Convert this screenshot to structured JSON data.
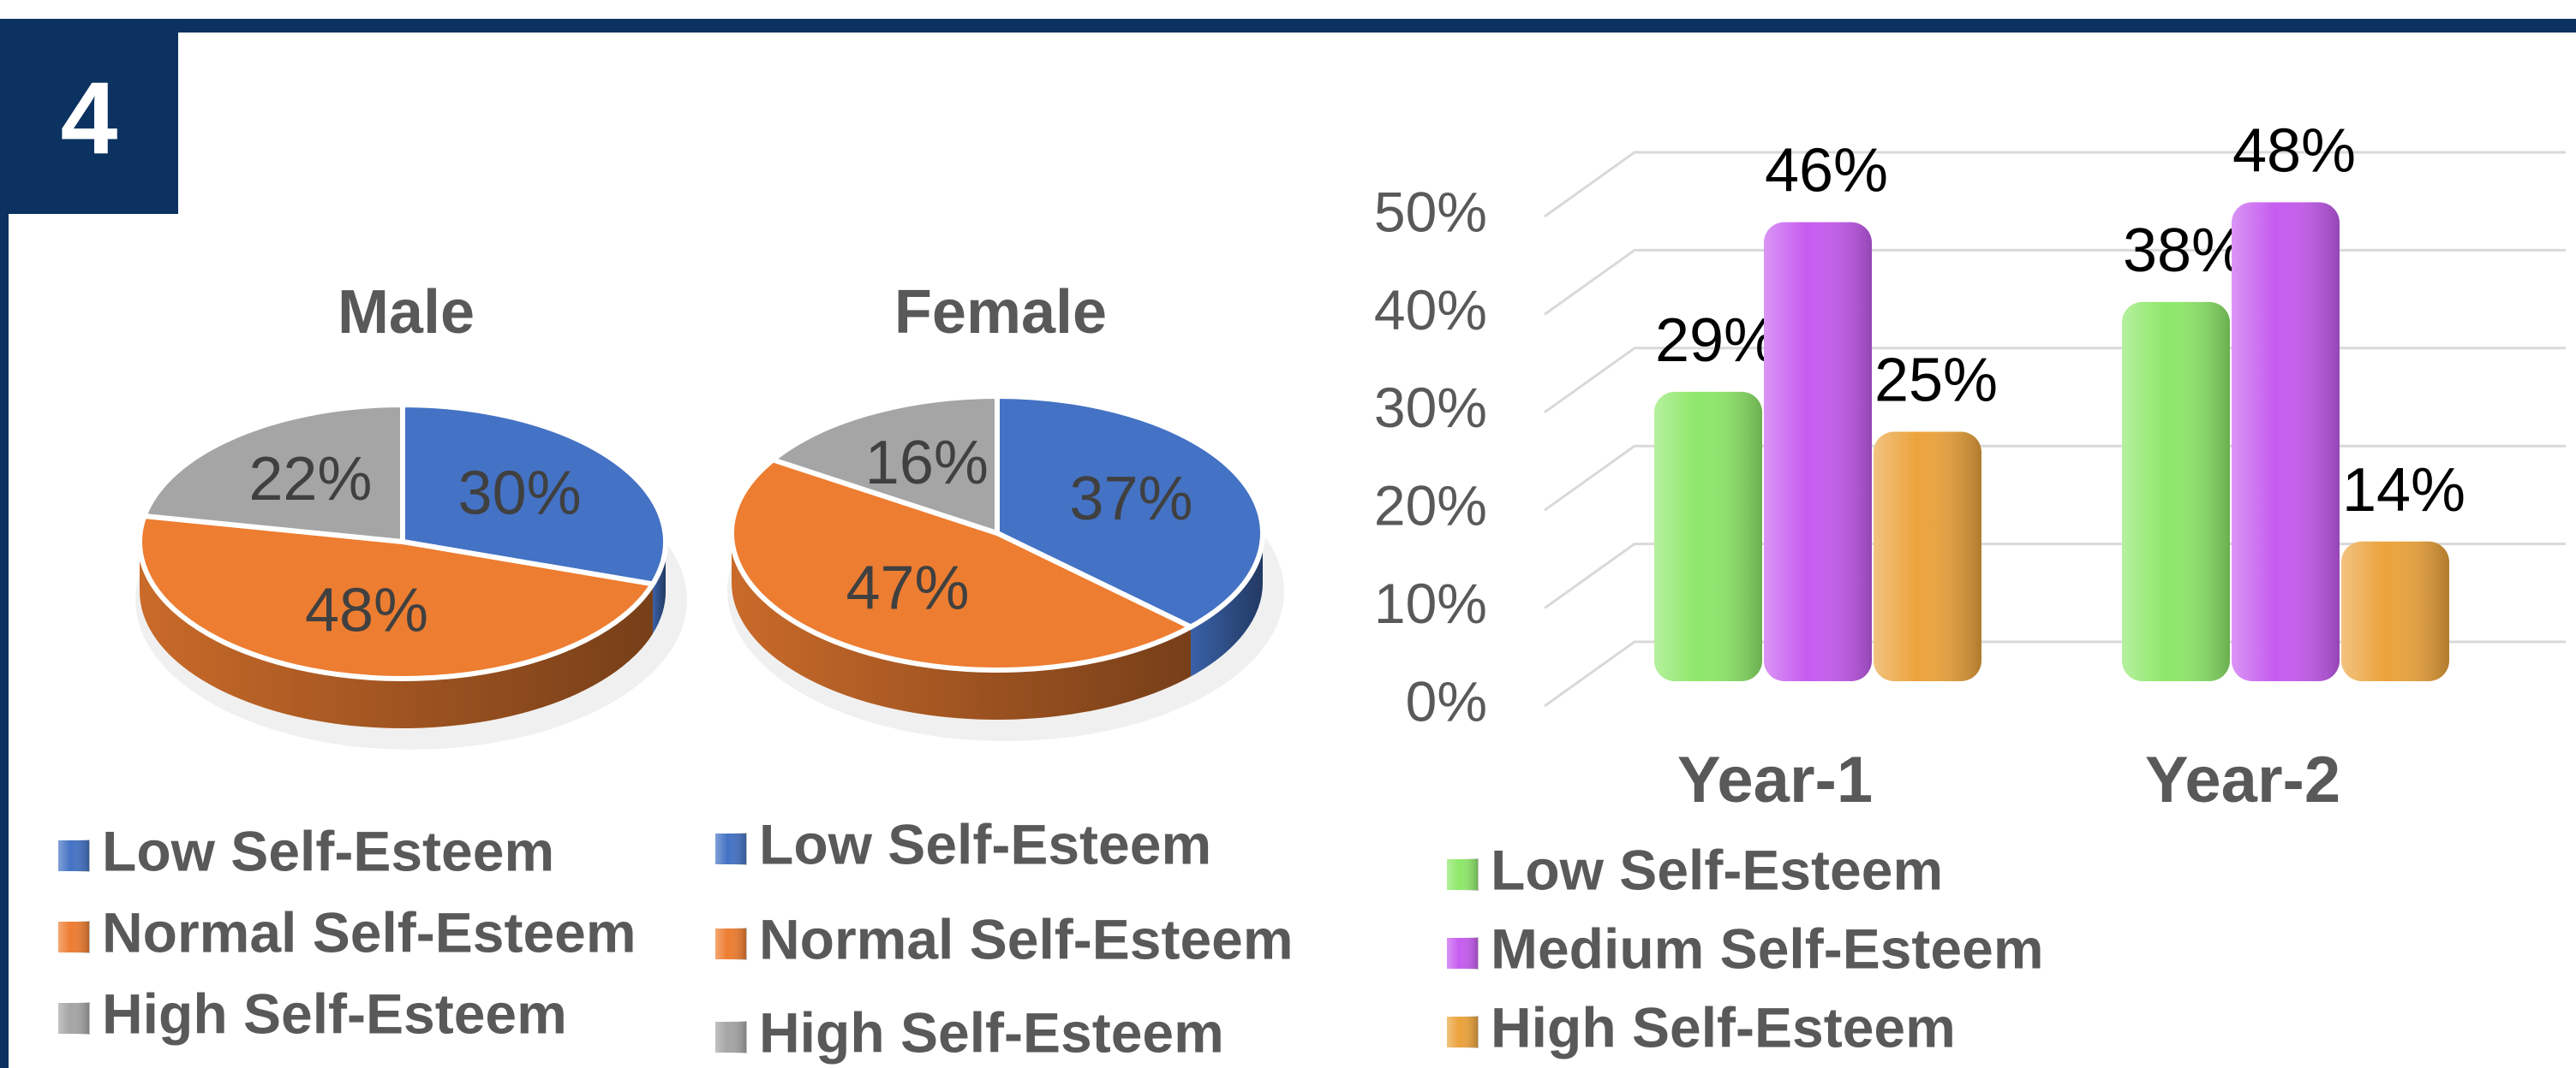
{
  "panel": "4",
  "chart_data": [
    {
      "type": "pie",
      "title": "Male",
      "categories": [
        "Low Self-Esteem",
        "Normal Self-Esteem",
        "High Self-Esteem"
      ],
      "values": [
        30,
        48,
        22
      ],
      "value_labels": [
        "30%",
        "48%",
        "22%"
      ],
      "colors": [
        "#4472c4",
        "#ed7d31",
        "#a5a5a5"
      ]
    },
    {
      "type": "pie",
      "title": "Female",
      "categories": [
        "Low Self-Esteem",
        "Normal Self-Esteem",
        "High Self-Esteem"
      ],
      "values": [
        37,
        47,
        16
      ],
      "value_labels": [
        "37%",
        "47%",
        "16%"
      ],
      "colors": [
        "#4472c4",
        "#ed7d31",
        "#a5a5a5"
      ]
    },
    {
      "type": "bar",
      "categories": [
        "Year-1",
        "Year-2"
      ],
      "series": [
        {
          "name": "Low Self-Esteem",
          "color": "#8ee86a",
          "values": [
            29,
            38
          ],
          "value_labels": [
            "29%",
            "38%"
          ]
        },
        {
          "name": "Medium Self-Esteem",
          "color": "#c65cf0",
          "values": [
            46,
            48
          ],
          "value_labels": [
            "46%",
            "48%"
          ]
        },
        {
          "name": "High Self-Esteem",
          "color": "#eba33c",
          "values": [
            25,
            14
          ],
          "value_labels": [
            "25%",
            "14%"
          ]
        }
      ],
      "ylim": [
        0,
        50
      ],
      "yticks": [
        {
          "value": 0,
          "label": "0%"
        },
        {
          "value": 10,
          "label": "10%"
        },
        {
          "value": 20,
          "label": "20%"
        },
        {
          "value": 30,
          "label": "30%"
        },
        {
          "value": 40,
          "label": "40%"
        },
        {
          "value": 50,
          "label": "50%"
        }
      ],
      "grid": true
    }
  ]
}
